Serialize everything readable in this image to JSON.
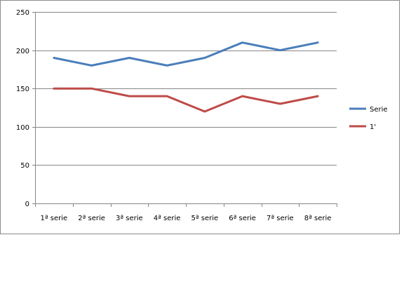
{
  "chart_data": {
    "type": "line",
    "title": "",
    "xlabel": "",
    "ylabel": "",
    "categories": [
      "1ª serie",
      "2ª serie",
      "3ª serie",
      "4ª serie",
      "5ª serie",
      "6ª serie",
      "7ª serie",
      "8ª serie"
    ],
    "ylim": [
      0,
      250
    ],
    "yticks": [
      0,
      50,
      100,
      150,
      200,
      250
    ],
    "grid": true,
    "legend_position": "right",
    "series": [
      {
        "name": "Serie",
        "color": "#4a7ebb",
        "values": [
          190,
          180,
          190,
          180,
          190,
          210,
          200,
          210
        ]
      },
      {
        "name": "1'",
        "color": "#be4b48",
        "values": [
          150,
          150,
          140,
          140,
          120,
          140,
          130,
          140
        ]
      }
    ]
  }
}
